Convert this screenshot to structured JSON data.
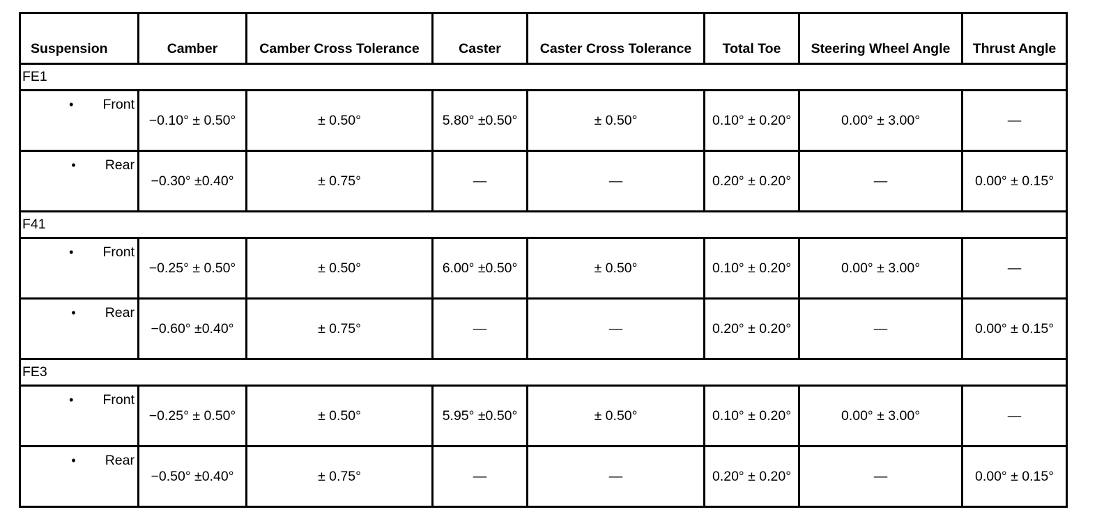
{
  "headers": [
    "Suspension",
    "Camber",
    "Camber Cross Tolerance",
    "Caster",
    "Caster Cross Tolerance",
    "Total Toe",
    "Steering Wheel Angle",
    "Thrust Angle"
  ],
  "groups": [
    {
      "name": "FE1",
      "rows": [
        {
          "position": "Front",
          "camber": "−0.10° ± 0.50°",
          "camber_cross": "± 0.50°",
          "caster": "5.80° ±0.50°",
          "caster_cross": "± 0.50°",
          "total_toe": "0.10° ± 0.20°",
          "steering": "0.00° ± 3.00°",
          "thrust": "—"
        },
        {
          "position": "Rear",
          "camber": "−0.30° ±0.40°",
          "camber_cross": "± 0.75°",
          "caster": "—",
          "caster_cross": "—",
          "total_toe": "0.20° ± 0.20°",
          "steering": "—",
          "thrust": "0.00° ± 0.15°"
        }
      ]
    },
    {
      "name": "F41",
      "rows": [
        {
          "position": "Front",
          "camber": "−0.25° ± 0.50°",
          "camber_cross": "± 0.50°",
          "caster": "6.00° ±0.50°",
          "caster_cross": "± 0.50°",
          "total_toe": "0.10° ± 0.20°",
          "steering": "0.00° ± 3.00°",
          "thrust": "—"
        },
        {
          "position": "Rear",
          "camber": "−0.60° ±0.40°",
          "camber_cross": "± 0.75°",
          "caster": "—",
          "caster_cross": "—",
          "total_toe": "0.20° ± 0.20°",
          "steering": "—",
          "thrust": "0.00° ± 0.15°"
        }
      ]
    },
    {
      "name": "FE3",
      "rows": [
        {
          "position": "Front",
          "camber": "−0.25° ± 0.50°",
          "camber_cross": "± 0.50°",
          "caster": "5.95° ±0.50°",
          "caster_cross": "± 0.50°",
          "total_toe": "0.10° ± 0.20°",
          "steering": "0.00° ± 3.00°",
          "thrust": "—"
        },
        {
          "position": "Rear",
          "camber": "−0.50° ±0.40°",
          "camber_cross": "± 0.75°",
          "caster": "—",
          "caster_cross": "—",
          "total_toe": "0.20° ± 0.20°",
          "steering": "—",
          "thrust": "0.00° ± 0.15°"
        }
      ]
    }
  ],
  "bullet": "•"
}
